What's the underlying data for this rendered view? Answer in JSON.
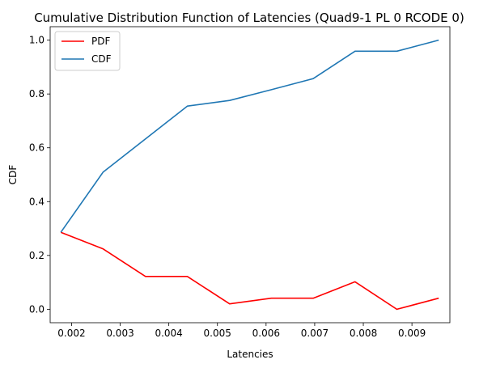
{
  "chart_data": {
    "type": "line",
    "title": "Cumulative Distribution Function of Latencies (Quad9-1 PL 0 RCODE 0)",
    "xlabel": "Latencies",
    "ylabel": "CDF",
    "xlim": [
      0.00156,
      0.00978
    ],
    "ylim": [
      -0.05,
      1.05
    ],
    "xticks": [
      "0.002",
      "0.003",
      "0.004",
      "0.005",
      "0.006",
      "0.007",
      "0.008",
      "0.009"
    ],
    "xtick_values": [
      0.002,
      0.003,
      0.004,
      0.005,
      0.006,
      0.007,
      0.008,
      0.009
    ],
    "yticks": [
      "0.0",
      "0.2",
      "0.4",
      "0.6",
      "0.8",
      "1.0"
    ],
    "ytick_values": [
      0.0,
      0.2,
      0.4,
      0.6,
      0.8,
      1.0
    ],
    "grid": false,
    "legend_position": "top-left",
    "series": [
      {
        "name": "PDF",
        "color": "#ff0000",
        "x": [
          0.00178,
          0.00265,
          0.00352,
          0.00438,
          0.00525,
          0.00611,
          0.00697,
          0.00783,
          0.00869,
          0.00955
        ],
        "y": [
          0.286,
          0.224,
          0.122,
          0.122,
          0.02,
          0.041,
          0.041,
          0.102,
          0.0,
          0.041
        ]
      },
      {
        "name": "CDF",
        "color": "#1f77b4",
        "x": [
          0.00178,
          0.00265,
          0.00352,
          0.00438,
          0.00525,
          0.00611,
          0.00697,
          0.00783,
          0.00869,
          0.00955
        ],
        "y": [
          0.286,
          0.51,
          0.633,
          0.755,
          0.776,
          0.816,
          0.857,
          0.959,
          0.959,
          1.0
        ]
      }
    ]
  }
}
